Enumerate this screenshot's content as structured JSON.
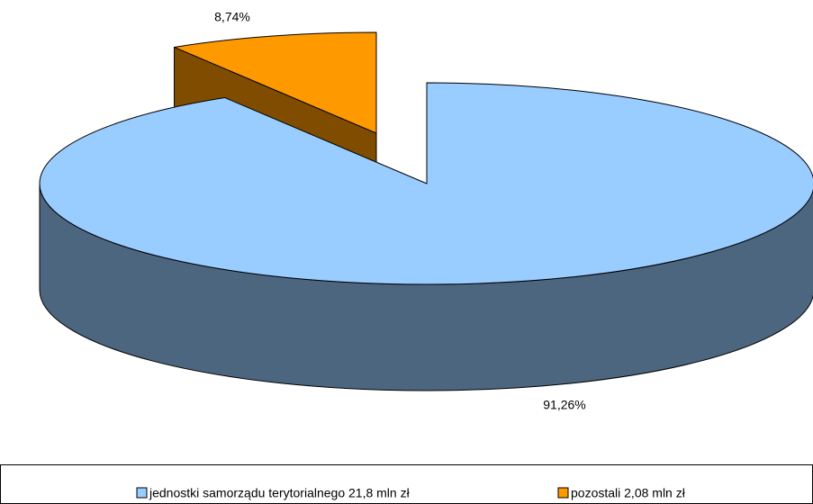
{
  "chart_data": {
    "type": "pie",
    "labels": [
      "jednostki samorządu terytorialnego 21,8 mln zł",
      "pozostali 2,08 mln zł"
    ],
    "values": [
      91.26,
      8.74
    ],
    "value_labels": [
      "91,26%",
      "8,74%"
    ],
    "colors": [
      "#99ccff",
      "#ff9900"
    ],
    "legend": "bottom"
  }
}
